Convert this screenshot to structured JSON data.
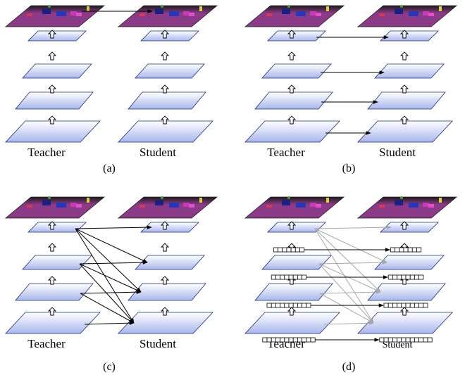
{
  "panels": [
    {
      "id": "a",
      "caption": "(a)",
      "teacher_label": "Teacher",
      "student_label": "Student",
      "mode": "output"
    },
    {
      "id": "b",
      "caption": "(b)",
      "teacher_label": "Teacher",
      "student_label": "Student",
      "mode": "layerwise"
    },
    {
      "id": "c",
      "caption": "(c)",
      "teacher_label": "Teacher",
      "student_label": "Student",
      "mode": "multi"
    },
    {
      "id": "d",
      "caption": "(d)",
      "teacher_label": "Teacher",
      "student_label": "Student",
      "mode": "tokens"
    }
  ],
  "colors": {
    "layer_top": "#ffffff",
    "layer_bottom": "#a9b6ec",
    "layer_stroke": "#1f2f6e",
    "seg_map_base": "#8a3a86",
    "seg_map_dark": "#1a1a1a",
    "arrow": "#000000",
    "arrow_faded": "#a8a8a8"
  }
}
